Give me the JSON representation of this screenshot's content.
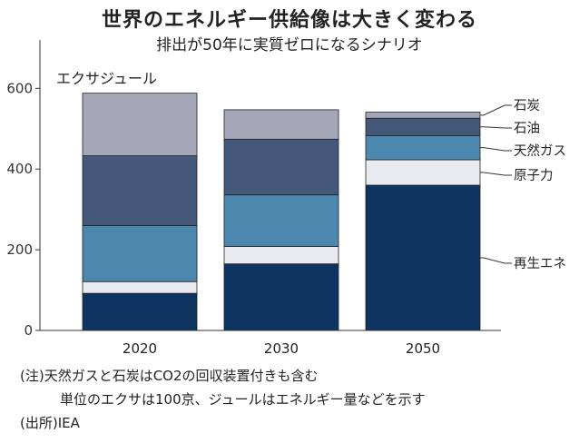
{
  "title": "世界のエネルギー供給像は大きく変わる",
  "subtitle": "排出が50年に実質ゼロになるシナリオ",
  "notes": [
    "(注)天然ガスと石炭はCO2の回収装置付きも含む",
    "単位のエクサは100京、ジュールはエネルギー量などを示す",
    "(出所)IEA"
  ],
  "chart_data": {
    "type": "bar",
    "stacked": true,
    "unit_label": "エクサジュール",
    "categories": [
      "2020",
      "2030",
      "2050"
    ],
    "series": [
      {
        "name": "再生エネ",
        "color": "#0d3360",
        "values": [
          92,
          165,
          360
        ]
      },
      {
        "name": "原子力",
        "color": "#e8eaef",
        "values": [
          29,
          43,
          63
        ]
      },
      {
        "name": "天然ガス",
        "color": "#4c87ae",
        "values": [
          139,
          128,
          60
        ]
      },
      {
        "name": "石油",
        "color": "#44587a",
        "values": [
          173,
          138,
          43
        ]
      },
      {
        "name": "石炭",
        "color": "#a3a7b8",
        "values": [
          155,
          73,
          15
        ]
      }
    ],
    "ylim": [
      0,
      720
    ],
    "yticks": [
      0,
      200,
      400,
      600
    ]
  }
}
